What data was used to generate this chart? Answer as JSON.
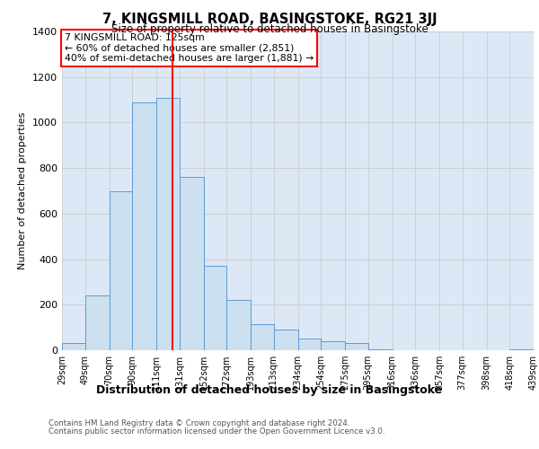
{
  "title": "7, KINGSMILL ROAD, BASINGSTOKE, RG21 3JJ",
  "subtitle": "Size of property relative to detached houses in Basingstoke",
  "xlabel": "Distribution of detached houses by size in Basingstoke",
  "ylabel": "Number of detached properties",
  "footnote1": "Contains HM Land Registry data © Crown copyright and database right 2024.",
  "footnote2": "Contains public sector information licensed under the Open Government Licence v3.0.",
  "annotation_line1": "7 KINGSMILL ROAD: 125sqm",
  "annotation_line2": "← 60% of detached houses are smaller (2,851)",
  "annotation_line3": "40% of semi-detached houses are larger (1,881) →",
  "bar_edges": [
    29,
    49,
    70,
    90,
    111,
    131,
    152,
    172,
    193,
    213,
    234,
    254,
    275,
    295,
    316,
    336,
    357,
    377,
    398,
    418,
    439
  ],
  "bar_heights": [
    30,
    240,
    700,
    1090,
    1110,
    760,
    370,
    220,
    115,
    90,
    50,
    40,
    30,
    5,
    0,
    0,
    0,
    0,
    0,
    5
  ],
  "bar_color": "#cce0f0",
  "bar_edgecolor": "#5b9bd5",
  "vline_x": 125,
  "vline_color": "red",
  "ylim": [
    0,
    1400
  ],
  "yticks": [
    0,
    200,
    400,
    600,
    800,
    1000,
    1200,
    1400
  ],
  "annotation_box_color": "red",
  "grid_color": "#cccccc",
  "bg_color": "#dce8f5"
}
